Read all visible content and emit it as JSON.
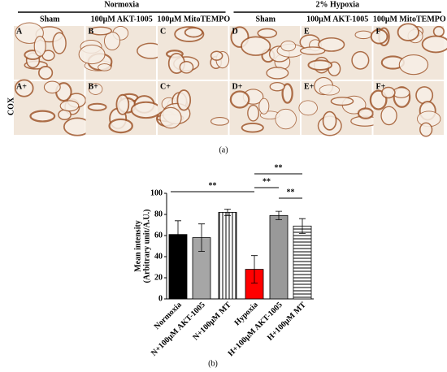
{
  "figure_a": {
    "groups": [
      "Normoxia",
      "2% Hypoxia"
    ],
    "columns": [
      "Sham",
      "100μM AKT-1005",
      "100μM MitoTEMPO",
      "Sham",
      "100μM AKT-1005",
      "100μM MitoTEMPO"
    ],
    "row_label": "COX",
    "panels": [
      [
        "A",
        "B",
        "C",
        "D",
        "E",
        "F"
      ],
      [
        "A+",
        "B+",
        "C+",
        "D+",
        "E+",
        "F+"
      ]
    ],
    "caption": "(a)"
  },
  "chart_data": {
    "type": "bar",
    "ylabel": [
      "Mean intensity",
      "(Arbitrary unit/A.U.)"
    ],
    "categories": [
      "Normoxia",
      "N+100μM AKT-1005",
      "N+100μM MT",
      "Hypoxia",
      "H+100μM AKT-1005",
      "H+100μM MT"
    ],
    "values": [
      61,
      58,
      82,
      28,
      79,
      69
    ],
    "errors": [
      13,
      13,
      3,
      13,
      4,
      7
    ],
    "colors": [
      "#000000",
      "#a6a6a6",
      "#ffffff",
      "#ff0000",
      "#999999",
      "#ffffff"
    ],
    "hatches": [
      "solid",
      "solid",
      "vertical",
      "solid",
      "solid",
      "horizontal"
    ],
    "ylim": [
      0,
      100
    ],
    "yticks": [
      0,
      20,
      40,
      60,
      80,
      100
    ],
    "annotations": [
      "**",
      "**",
      "**",
      "**"
    ],
    "caption": "(b)"
  }
}
